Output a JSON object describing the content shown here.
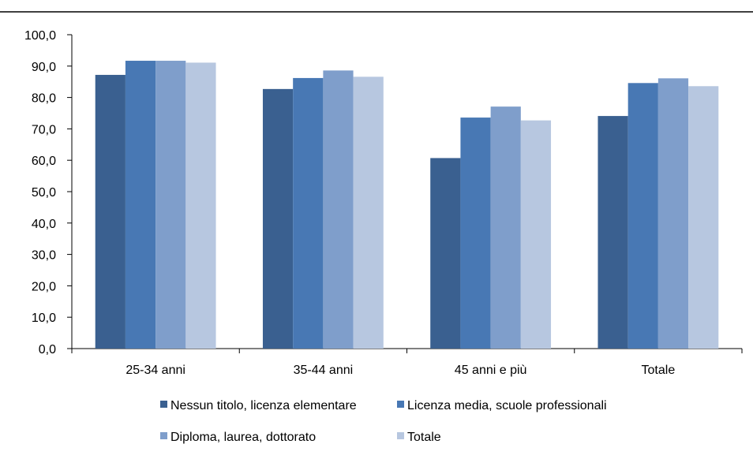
{
  "chart_data": {
    "type": "bar",
    "categories": [
      "25-34 anni",
      "35-44 anni",
      "45 anni e più",
      "Totale"
    ],
    "series": [
      {
        "name": "Nessun titolo, licenza elementare",
        "color": "#3a6090",
        "values": [
          87.2,
          82.7,
          60.7,
          74.1
        ]
      },
      {
        "name": "Licenza media, scuole professionali",
        "color": "#4878b4",
        "values": [
          91.7,
          86.2,
          73.6,
          84.6
        ]
      },
      {
        "name": "Diploma, laurea, dottorato",
        "color": "#7f9ecb",
        "values": [
          91.7,
          88.6,
          77.1,
          86.1
        ]
      },
      {
        "name": "Totale",
        "color": "#b7c7e0",
        "values": [
          91.1,
          86.6,
          72.7,
          83.6
        ]
      }
    ],
    "yticks": [
      "0,0",
      "10,0",
      "20,0",
      "30,0",
      "40,0",
      "50,0",
      "60,0",
      "70,0",
      "80,0",
      "90,0",
      "100,0"
    ],
    "ylim": [
      0,
      100
    ],
    "grid": false,
    "legend_position": "bottom"
  }
}
